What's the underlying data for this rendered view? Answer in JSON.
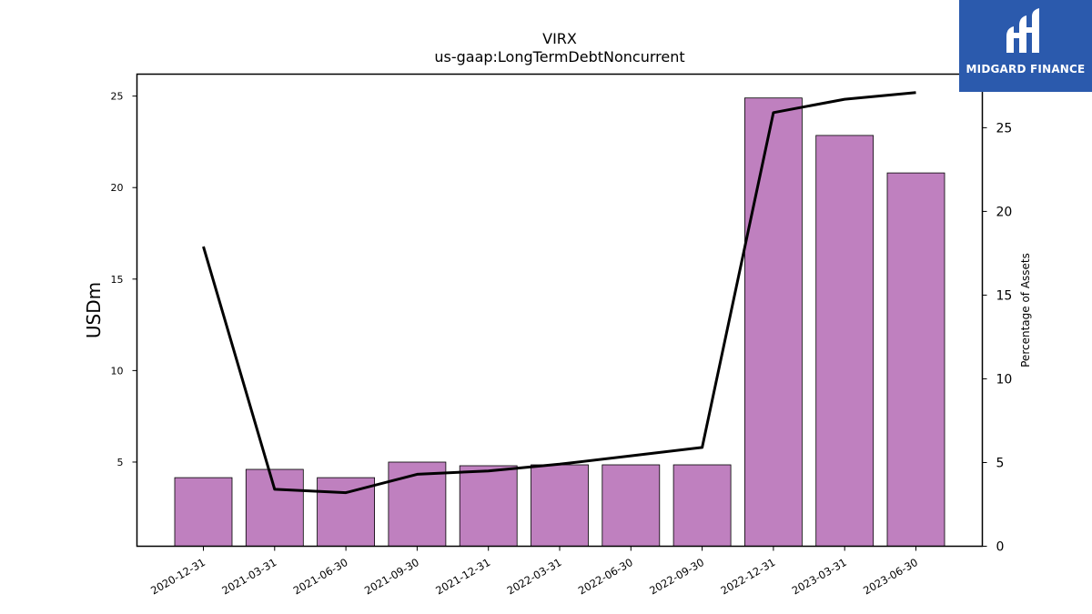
{
  "chart_data": {
    "type": "bar",
    "title": "VIRX",
    "subtitle": "us-gaap:LongTermDebtNoncurrent",
    "ylabel": "USDm",
    "y2label": "Percentage of Assets",
    "categories": [
      "2020-12-31",
      "2021-03-31",
      "2021-06-30",
      "2021-09-30",
      "2021-12-31",
      "2022-03-31",
      "2022-06-30",
      "2022-09-30",
      "2022-12-31",
      "2023-03-31",
      "2023-06-30"
    ],
    "series": [
      {
        "type": "bar",
        "axis": "left",
        "color": "#bf80bf",
        "values": [
          4.15,
          4.6,
          4.15,
          5.0,
          4.8,
          4.85,
          4.85,
          4.85,
          24.9,
          22.85,
          20.8
        ]
      },
      {
        "type": "line",
        "axis": "right",
        "color": "#000000",
        "values": [
          17.9,
          3.4,
          3.2,
          4.3,
          4.5,
          4.9,
          5.4,
          5.9,
          25.9,
          26.7,
          27.1
        ]
      }
    ],
    "ylim": [
      0.4,
      26.2
    ],
    "y2lim": [
      0,
      28.2
    ],
    "yticks": [
      5,
      10,
      15,
      20,
      25
    ],
    "y2ticks": [
      0,
      5,
      10,
      15,
      20,
      25
    ],
    "grid": false,
    "legend": "none"
  },
  "logo": {
    "text": "MIDGARD FINANCE",
    "color": "#2b5aad"
  }
}
